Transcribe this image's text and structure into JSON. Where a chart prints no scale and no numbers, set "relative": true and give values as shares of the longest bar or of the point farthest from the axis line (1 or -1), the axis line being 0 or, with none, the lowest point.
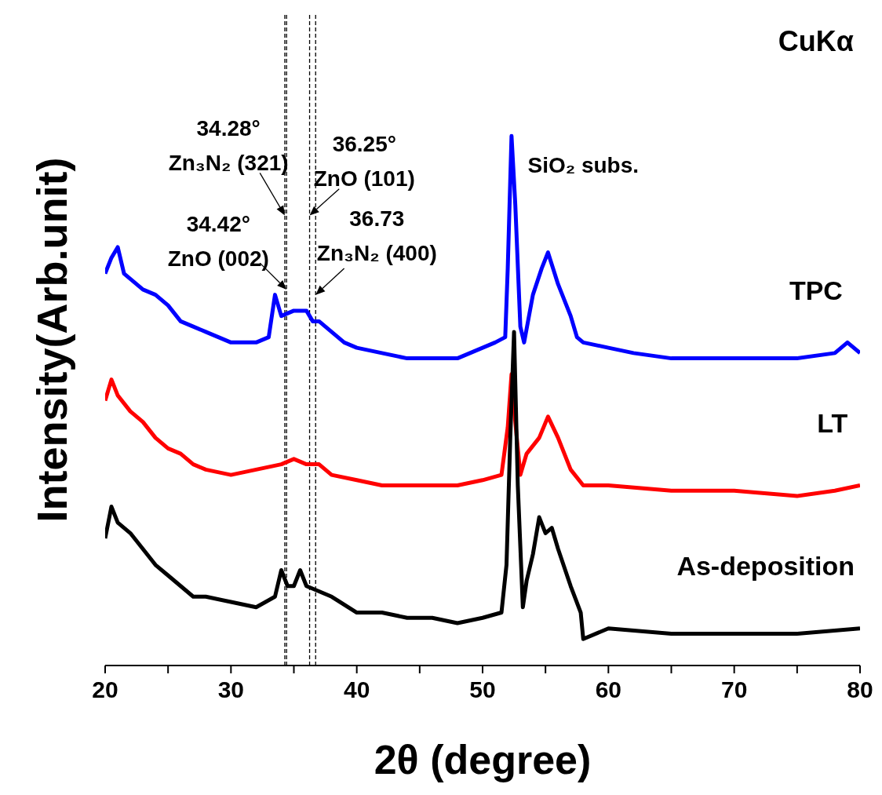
{
  "chart_data": {
    "type": "line",
    "relative": true,
    "xlabel": "2θ (degree)",
    "ylabel": "Intensity(Arb.unit)",
    "xlim": [
      20,
      80
    ],
    "xticks": [
      20,
      {
        "value": 25,
        "label": null
      },
      30,
      {
        "value": 35,
        "label": null
      },
      40,
      {
        "value": 45,
        "label": null
      },
      50,
      {
        "value": 55,
        "label": null
      },
      60,
      {
        "value": 65,
        "label": null
      },
      70,
      {
        "value": 75,
        "label": null
      },
      80
    ],
    "marker": "none",
    "line_style": "solid",
    "series": [
      {
        "name": "TPC",
        "color": "#0000ff",
        "x": [
          20,
          20.5,
          21,
          21.5,
          22,
          23,
          24,
          25,
          26,
          27,
          28,
          29,
          30,
          31,
          32,
          33,
          33.5,
          34,
          35,
          36,
          36.5,
          37,
          38,
          39,
          40,
          42,
          44,
          46,
          48,
          49,
          50,
          51,
          51.8,
          52,
          52.3,
          52.6,
          53,
          53.3,
          54,
          54.7,
          55.2,
          55.6,
          56,
          57,
          57.5,
          58,
          60,
          62,
          65,
          68,
          70,
          72,
          75,
          78,
          79,
          80
        ],
        "values": [
          0.74,
          0.77,
          0.79,
          0.74,
          0.73,
          0.71,
          0.7,
          0.68,
          0.65,
          0.64,
          0.63,
          0.62,
          0.61,
          0.61,
          0.61,
          0.62,
          0.7,
          0.66,
          0.67,
          0.67,
          0.65,
          0.65,
          0.63,
          0.61,
          0.6,
          0.59,
          0.58,
          0.58,
          0.58,
          0.59,
          0.6,
          0.61,
          0.62,
          0.75,
          1.0,
          0.87,
          0.64,
          0.61,
          0.7,
          0.75,
          0.78,
          0.75,
          0.72,
          0.66,
          0.62,
          0.61,
          0.6,
          0.59,
          0.58,
          0.58,
          0.58,
          0.58,
          0.58,
          0.59,
          0.61,
          0.59
        ]
      },
      {
        "name": "LT",
        "color": "#ff0000",
        "x": [
          20,
          20.5,
          21,
          22,
          23,
          24,
          25,
          26,
          27,
          28,
          30,
          32,
          34,
          35,
          36,
          37,
          38,
          40,
          42,
          44,
          46,
          48,
          50,
          51.5,
          52,
          52.3,
          52.6,
          53,
          53.5,
          54.5,
          55.2,
          56,
          57,
          58,
          60,
          65,
          70,
          75,
          78,
          80
        ],
        "values": [
          0.5,
          0.54,
          0.51,
          0.48,
          0.46,
          0.43,
          0.41,
          0.4,
          0.38,
          0.37,
          0.36,
          0.37,
          0.38,
          0.39,
          0.38,
          0.38,
          0.36,
          0.35,
          0.34,
          0.34,
          0.34,
          0.34,
          0.35,
          0.36,
          0.45,
          0.55,
          0.46,
          0.36,
          0.4,
          0.43,
          0.47,
          0.43,
          0.37,
          0.34,
          0.34,
          0.33,
          0.33,
          0.32,
          0.33,
          0.34
        ]
      },
      {
        "name": "As-deposition",
        "color": "#000000",
        "x": [
          20,
          20.5,
          21,
          22,
          23,
          24,
          25,
          26,
          27,
          28,
          30,
          32,
          33.5,
          34,
          34.5,
          35,
          35.5,
          36,
          38,
          40,
          42,
          44,
          46,
          48,
          50,
          51.5,
          51.9,
          52.2,
          52.5,
          52.8,
          53.2,
          53.5,
          54,
          54.5,
          55,
          55.5,
          56,
          57,
          57.8,
          58,
          60,
          65,
          70,
          75,
          80
        ],
        "values": [
          0.24,
          0.3,
          0.27,
          0.25,
          0.22,
          0.19,
          0.17,
          0.15,
          0.13,
          0.13,
          0.12,
          0.11,
          0.13,
          0.18,
          0.15,
          0.15,
          0.18,
          0.15,
          0.13,
          0.1,
          0.1,
          0.09,
          0.09,
          0.08,
          0.09,
          0.1,
          0.19,
          0.43,
          0.63,
          0.34,
          0.11,
          0.16,
          0.21,
          0.28,
          0.25,
          0.26,
          0.22,
          0.15,
          0.1,
          0.05,
          0.07,
          0.06,
          0.06,
          0.06,
          0.07
        ]
      }
    ],
    "ref_lines": [
      {
        "axis": "x",
        "value": 34.28,
        "label": "34.28° Zn₃N₂ (321)",
        "color": "#000000",
        "line_style": "dashed"
      },
      {
        "axis": "x",
        "value": 34.42,
        "label": "34.42° ZnO (002)",
        "color": "#000000",
        "line_style": "dashed"
      },
      {
        "axis": "x",
        "value": 36.25,
        "label": "36.25° ZnO (101)",
        "color": "#000000",
        "line_style": "dashed"
      },
      {
        "axis": "x",
        "value": 36.73,
        "label": "36.73 Zn₃N₂ (400)",
        "color": "#000000",
        "line_style": "dashed"
      }
    ],
    "annotations": [
      "CuKα",
      "SiO₂ subs."
    ]
  }
}
